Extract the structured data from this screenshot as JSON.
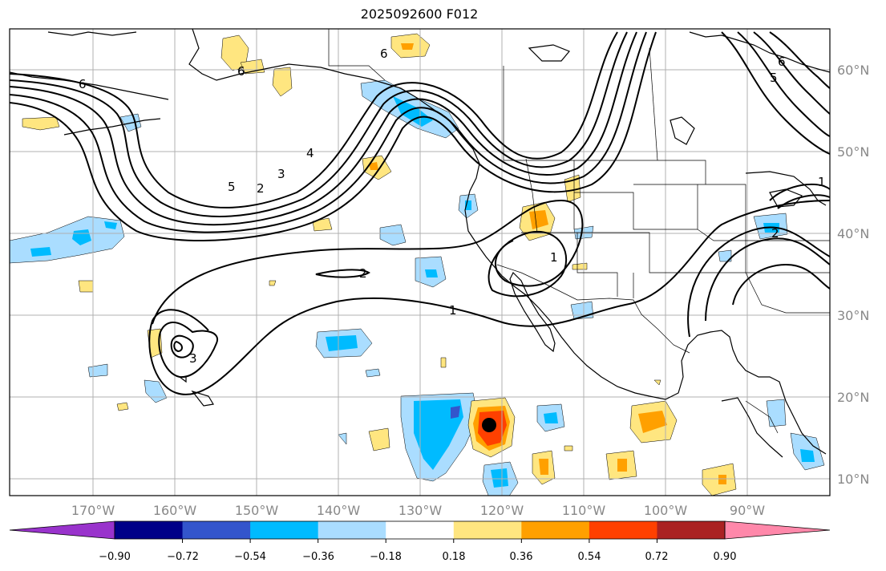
{
  "title": "2025092600 F012",
  "lat_labels": [
    "60°N",
    "50°N",
    "40°N",
    "30°N",
    "20°N",
    "10°N"
  ],
  "lon_labels": [
    "170°W",
    "160°W",
    "150°W",
    "140°W",
    "130°W",
    "120°W",
    "110°W",
    "100°W",
    "90°W"
  ],
  "colorbar": {
    "ticks": [
      "−0.90",
      "−0.72",
      "−0.54",
      "−0.36",
      "−0.18",
      "0.18",
      "0.36",
      "0.54",
      "0.72",
      "0.90"
    ],
    "colors": [
      "#9933cc",
      "#000088",
      "#3355cc",
      "#00bbff",
      "#aaddff",
      "#ffffff",
      "#ffe680",
      "#ffa000",
      "#ff4000",
      "#aa2222",
      "#ff88aa"
    ]
  },
  "contour_labels": [
    "6",
    "6",
    "6",
    "5",
    "4",
    "3",
    "2",
    "2",
    "1",
    "1",
    "3",
    "2",
    "1",
    "5",
    "6"
  ],
  "storm_marker": "black-dot"
}
